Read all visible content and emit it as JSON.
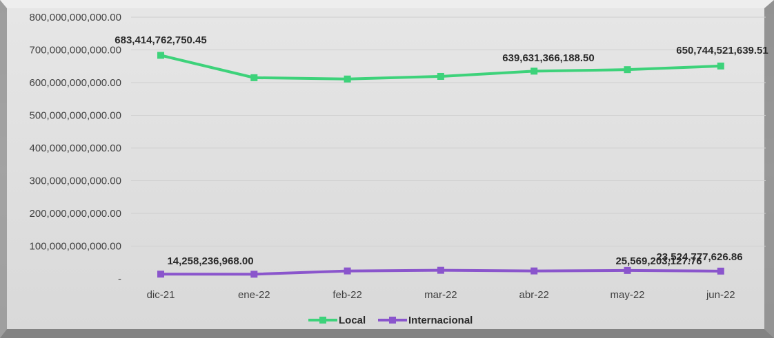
{
  "chart_data": {
    "type": "line",
    "categories": [
      "dic-21",
      "ene-22",
      "feb-22",
      "mar-22",
      "abr-22",
      "may-22",
      "jun-22"
    ],
    "series": [
      {
        "name": "Local",
        "color": "#3dd27a",
        "values": [
          683414762750.45,
          615000000000,
          611000000000,
          619000000000,
          635000000000,
          639631366188.5,
          650744521639.51
        ],
        "labels": [
          "683,414,762,750.45",
          "",
          "",
          "",
          "",
          "639,631,366,188.50",
          "650,744,521,639.51"
        ]
      },
      {
        "name": "Internacional",
        "color": "#8a55cc",
        "values": [
          14258236968.0,
          14000000000,
          24000000000,
          26000000000,
          24000000000,
          25569203127.76,
          23524777626.86
        ],
        "labels": [
          "14,258,236,968.00",
          "",
          "",
          "",
          "",
          "25,569,203,127.76",
          "23,524,777,626.86"
        ]
      }
    ],
    "y_ticks": [
      {
        "value": 800000000000,
        "label": "800,000,000,000.00"
      },
      {
        "value": 700000000000,
        "label": "700,000,000,000.00"
      },
      {
        "value": 600000000000,
        "label": "600,000,000,000.00"
      },
      {
        "value": 500000000000,
        "label": "500,000,000,000.00"
      },
      {
        "value": 400000000000,
        "label": "400,000,000,000.00"
      },
      {
        "value": 300000000000,
        "label": "300,000,000,000.00"
      },
      {
        "value": 200000000000,
        "label": "200,000,000,000.00"
      },
      {
        "value": 100000000000,
        "label": "100,000,000,000.00"
      },
      {
        "value": 0,
        "label": "-"
      }
    ],
    "ylim": [
      0,
      800000000000
    ],
    "grid": true,
    "legend": "bottom-center",
    "title": "",
    "xlabel": "",
    "ylabel": ""
  }
}
